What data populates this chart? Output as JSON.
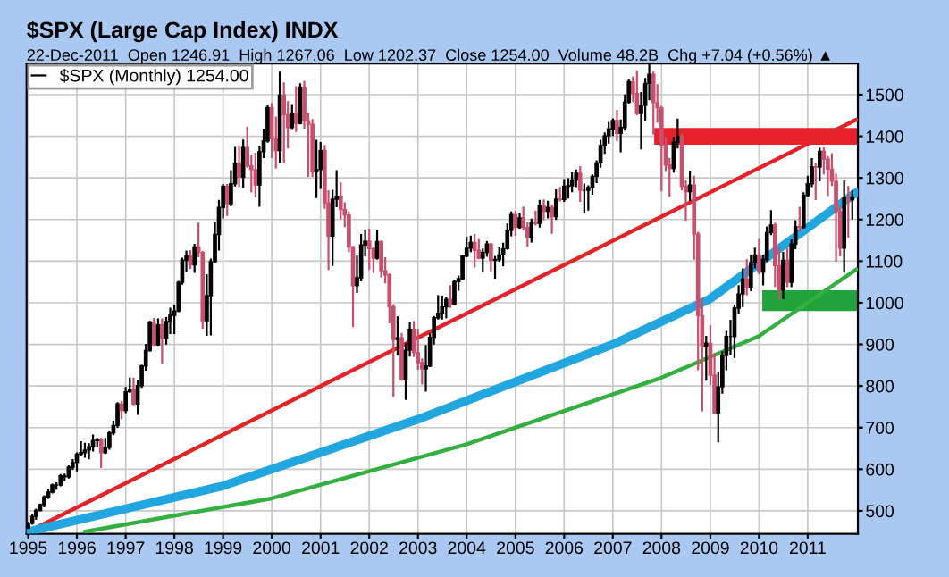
{
  "chart_data": {
    "type": "candlestick",
    "title": "$SPX (Large Cap Index) INDX",
    "subtitle": "22-Dec-2011  Open 1246.91  High 1267.06  Low 1202.37  Close 1254.00  Volume 48.2B  Chg +7.04 (+0.56%) ▲",
    "grid": true,
    "legend": "top left",
    "xlim": [
      "1994-12-20",
      "2012-01-12"
    ],
    "ylim": [
      445,
      1575
    ],
    "yticks": [
      500,
      600,
      700,
      800,
      900,
      1000,
      1100,
      1200,
      1300,
      1400,
      1500
    ],
    "xticks": [
      {
        "value": "1995-01-01",
        "label": "1995"
      },
      {
        "value": "1996-01-01",
        "label": "1996"
      },
      {
        "value": "1997-01-01",
        "label": "1997"
      },
      {
        "value": "1998-01-01",
        "label": "1998"
      },
      {
        "value": "1999-01-01",
        "label": "1999"
      },
      {
        "value": "2000-01-01",
        "label": "2000"
      },
      {
        "value": "2001-01-01",
        "label": "2001"
      },
      {
        "value": "2002-01-01",
        "label": "2002"
      },
      {
        "value": "2003-01-01",
        "label": "2003"
      },
      {
        "value": "2004-01-01",
        "label": "2004"
      },
      {
        "value": "2005-01-01",
        "label": "2005"
      },
      {
        "value": "2006-01-01",
        "label": "2006"
      },
      {
        "value": "2007-01-01",
        "label": "2007"
      },
      {
        "value": "2008-01-01",
        "label": "2008"
      },
      {
        "value": "2009-01-01",
        "label": "2009"
      },
      {
        "value": "2010-01-01",
        "label": "2010"
      },
      {
        "value": "2011-01-01",
        "label": "2011"
      }
    ],
    "bands": [
      {
        "axis": "y",
        "from": 1380,
        "to": 1420,
        "color": "#e8202a"
      },
      {
        "axis": "y",
        "from": 980,
        "to": 1030,
        "color": "#1fa33a"
      }
    ],
    "series": [
      {
        "name": "$SPX (Monthly) 1254.00",
        "x": [
          "1995-01",
          "1995-02",
          "1995-03",
          "1995-04",
          "1995-05",
          "1995-06",
          "1995-07",
          "1995-08",
          "1995-09",
          "1995-10",
          "1995-11",
          "1995-12",
          "1996-01",
          "1996-02",
          "1996-03",
          "1996-04",
          "1996-05",
          "1996-06",
          "1996-07",
          "1996-08",
          "1996-09",
          "1996-10",
          "1996-11",
          "1996-12",
          "1997-01",
          "1997-02",
          "1997-03",
          "1997-04",
          "1997-05",
          "1997-06",
          "1997-07",
          "1997-08",
          "1997-09",
          "1997-10",
          "1997-11",
          "1997-12",
          "1998-01",
          "1998-02",
          "1998-03",
          "1998-04",
          "1998-05",
          "1998-06",
          "1998-07",
          "1998-08",
          "1998-09",
          "1998-10",
          "1998-11",
          "1998-12",
          "1999-01",
          "1999-02",
          "1999-03",
          "1999-04",
          "1999-05",
          "1999-06",
          "1999-07",
          "1999-08",
          "1999-09",
          "1999-10",
          "1999-11",
          "1999-12",
          "2000-01",
          "2000-02",
          "2000-03",
          "2000-04",
          "2000-05",
          "2000-06",
          "2000-07",
          "2000-08",
          "2000-09",
          "2000-10",
          "2000-11",
          "2000-12",
          "2001-01",
          "2001-02",
          "2001-03",
          "2001-04",
          "2001-05",
          "2001-06",
          "2001-07",
          "2001-08",
          "2001-09",
          "2001-10",
          "2001-11",
          "2001-12",
          "2002-01",
          "2002-02",
          "2002-03",
          "2002-04",
          "2002-05",
          "2002-06",
          "2002-07",
          "2002-08",
          "2002-09",
          "2002-10",
          "2002-11",
          "2002-12",
          "2003-01",
          "2003-02",
          "2003-03",
          "2003-04",
          "2003-05",
          "2003-06",
          "2003-07",
          "2003-08",
          "2003-09",
          "2003-10",
          "2003-11",
          "2003-12",
          "2004-01",
          "2004-02",
          "2004-03",
          "2004-04",
          "2004-05",
          "2004-06",
          "2004-07",
          "2004-08",
          "2004-09",
          "2004-10",
          "2004-11",
          "2004-12",
          "2005-01",
          "2005-02",
          "2005-03",
          "2005-04",
          "2005-05",
          "2005-06",
          "2005-07",
          "2005-08",
          "2005-09",
          "2005-10",
          "2005-11",
          "2005-12",
          "2006-01",
          "2006-02",
          "2006-03",
          "2006-04",
          "2006-05",
          "2006-06",
          "2006-07",
          "2006-08",
          "2006-09",
          "2006-10",
          "2006-11",
          "2006-12",
          "2007-01",
          "2007-02",
          "2007-03",
          "2007-04",
          "2007-05",
          "2007-06",
          "2007-07",
          "2007-08",
          "2007-09",
          "2007-10",
          "2007-11",
          "2007-12",
          "2008-01",
          "2008-02",
          "2008-03",
          "2008-04",
          "2008-05",
          "2008-06",
          "2008-07",
          "2008-08",
          "2008-09",
          "2008-10",
          "2008-11",
          "2008-12",
          "2009-01",
          "2009-02",
          "2009-03",
          "2009-04",
          "2009-05",
          "2009-06",
          "2009-07",
          "2009-08",
          "2009-09",
          "2009-10",
          "2009-11",
          "2009-12",
          "2010-01",
          "2010-02",
          "2010-03",
          "2010-04",
          "2010-05",
          "2010-06",
          "2010-07",
          "2010-08",
          "2010-09",
          "2010-10",
          "2010-11",
          "2010-12",
          "2011-01",
          "2011-02",
          "2011-03",
          "2011-04",
          "2011-05",
          "2011-06",
          "2011-07",
          "2011-08",
          "2011-09",
          "2011-10",
          "2011-11",
          "2011-12"
        ],
        "ohlc": [
          [
            459,
            471,
            459,
            470
          ],
          [
            470,
            489,
            469,
            487
          ],
          [
            487,
            503,
            481,
            501
          ],
          [
            501,
            515,
            501,
            515
          ],
          [
            515,
            535,
            511,
            533
          ],
          [
            533,
            551,
            531,
            545
          ],
          [
            545,
            563,
            544,
            562
          ],
          [
            562,
            566,
            553,
            562
          ],
          [
            562,
            586,
            561,
            584
          ],
          [
            584,
            587,
            573,
            582
          ],
          [
            582,
            607,
            580,
            605
          ],
          [
            605,
            622,
            601,
            616
          ],
          [
            616,
            638,
            597,
            636
          ],
          [
            636,
            665,
            635,
            640
          ],
          [
            640,
            661,
            630,
            646
          ],
          [
            646,
            660,
            626,
            654
          ],
          [
            654,
            681,
            645,
            669
          ],
          [
            669,
            673,
            657,
            671
          ],
          [
            671,
            673,
            605,
            640
          ],
          [
            640,
            673,
            639,
            652
          ],
          [
            652,
            690,
            649,
            687
          ],
          [
            687,
            714,
            684,
            705
          ],
          [
            705,
            759,
            702,
            757
          ],
          [
            757,
            762,
            723,
            741
          ],
          [
            741,
            795,
            737,
            786
          ],
          [
            786,
            818,
            786,
            791
          ],
          [
            791,
            818,
            756,
            757
          ],
          [
            757,
            812,
            733,
            801
          ],
          [
            801,
            849,
            798,
            848
          ],
          [
            848,
            899,
            839,
            885
          ],
          [
            885,
            954,
            885,
            954
          ],
          [
            954,
            961,
            899,
            899
          ],
          [
            899,
            960,
            899,
            947
          ],
          [
            947,
            960,
            855,
            915
          ],
          [
            915,
            963,
            902,
            955
          ],
          [
            955,
            986,
            927,
            970
          ],
          [
            970,
            993,
            927,
            980
          ],
          [
            980,
            1050,
            980,
            1049
          ],
          [
            1049,
            1106,
            1046,
            1102
          ],
          [
            1102,
            1123,
            1076,
            1112
          ],
          [
            1112,
            1124,
            1084,
            1091
          ],
          [
            1091,
            1139,
            1074,
            1134
          ],
          [
            1134,
            1190,
            1112,
            1121
          ],
          [
            1121,
            1122,
            940,
            957
          ],
          [
            957,
            1066,
            923,
            1017
          ],
          [
            1017,
            1104,
            924,
            1099
          ],
          [
            1099,
            1193,
            1099,
            1164
          ],
          [
            1164,
            1245,
            1128,
            1229
          ],
          [
            1229,
            1283,
            1205,
            1280
          ],
          [
            1280,
            1283,
            1211,
            1238
          ],
          [
            1238,
            1316,
            1234,
            1286
          ],
          [
            1286,
            1372,
            1282,
            1335
          ],
          [
            1335,
            1376,
            1281,
            1302
          ],
          [
            1302,
            1390,
            1278,
            1373
          ],
          [
            1373,
            1421,
            1327,
            1329
          ],
          [
            1329,
            1353,
            1268,
            1320
          ],
          [
            1320,
            1358,
            1256,
            1283
          ],
          [
            1283,
            1373,
            1233,
            1363
          ],
          [
            1363,
            1416,
            1350,
            1389
          ],
          [
            1389,
            1473,
            1387,
            1469
          ],
          [
            1469,
            1478,
            1350,
            1394
          ],
          [
            1394,
            1445,
            1325,
            1366
          ],
          [
            1366,
            1553,
            1339,
            1499
          ],
          [
            1499,
            1527,
            1339,
            1452
          ],
          [
            1452,
            1482,
            1373,
            1421
          ],
          [
            1421,
            1475,
            1420,
            1455
          ],
          [
            1455,
            1518,
            1413,
            1431
          ],
          [
            1431,
            1525,
            1431,
            1518
          ],
          [
            1518,
            1531,
            1421,
            1437
          ],
          [
            1437,
            1454,
            1305,
            1429
          ],
          [
            1429,
            1439,
            1305,
            1315
          ],
          [
            1315,
            1389,
            1254,
            1320
          ],
          [
            1320,
            1384,
            1276,
            1366
          ],
          [
            1366,
            1377,
            1228,
            1240
          ],
          [
            1240,
            1268,
            1081,
            1160
          ],
          [
            1160,
            1269,
            1091,
            1249
          ],
          [
            1249,
            1316,
            1232,
            1256
          ],
          [
            1256,
            1287,
            1203,
            1224
          ],
          [
            1224,
            1239,
            1184,
            1211
          ],
          [
            1211,
            1217,
            1124,
            1134
          ],
          [
            1134,
            1134,
            944,
            1041
          ],
          [
            1041,
            1111,
            1026,
            1060
          ],
          [
            1060,
            1163,
            1054,
            1139
          ],
          [
            1139,
            1173,
            1114,
            1148
          ],
          [
            1148,
            1176,
            1081,
            1130
          ],
          [
            1130,
            1131,
            1074,
            1107
          ],
          [
            1107,
            1173,
            1106,
            1147
          ],
          [
            1147,
            1147,
            1063,
            1077
          ],
          [
            1077,
            1107,
            1049,
            1067
          ],
          [
            1067,
            1068,
            953,
            990
          ],
          [
            990,
            994,
            776,
            912
          ],
          [
            912,
            965,
            876,
            916
          ],
          [
            916,
            925,
            815,
            815
          ],
          [
            815,
            900,
            769,
            886
          ],
          [
            886,
            951,
            873,
            936
          ],
          [
            936,
            954,
            872,
            880
          ],
          [
            880,
            935,
            841,
            856
          ],
          [
            856,
            864,
            806,
            841
          ],
          [
            841,
            896,
            789,
            848
          ],
          [
            848,
            924,
            848,
            917
          ],
          [
            917,
            966,
            902,
            964
          ],
          [
            964,
            1016,
            962,
            975
          ],
          [
            975,
            1015,
            962,
            990
          ],
          [
            990,
            1012,
            965,
            1008
          ],
          [
            1008,
            1040,
            990,
            996
          ],
          [
            996,
            1053,
            996,
            1051
          ],
          [
            1051,
            1063,
            1031,
            1058
          ],
          [
            1058,
            1112,
            1058,
            1112
          ],
          [
            1112,
            1156,
            1112,
            1131
          ],
          [
            1131,
            1159,
            1124,
            1145
          ],
          [
            1145,
            1163,
            1087,
            1126
          ],
          [
            1126,
            1151,
            1107,
            1107
          ],
          [
            1107,
            1128,
            1076,
            1121
          ],
          [
            1121,
            1146,
            1113,
            1141
          ],
          [
            1141,
            1141,
            1078,
            1102
          ],
          [
            1102,
            1110,
            1060,
            1104
          ],
          [
            1104,
            1131,
            1101,
            1115
          ],
          [
            1115,
            1142,
            1090,
            1130
          ],
          [
            1130,
            1188,
            1130,
            1174
          ],
          [
            1174,
            1217,
            1162,
            1212
          ],
          [
            1212,
            1218,
            1163,
            1181
          ],
          [
            1181,
            1213,
            1180,
            1204
          ],
          [
            1204,
            1229,
            1176,
            1181
          ],
          [
            1181,
            1192,
            1137,
            1157
          ],
          [
            1157,
            1200,
            1147,
            1192
          ],
          [
            1192,
            1219,
            1188,
            1191
          ],
          [
            1191,
            1245,
            1183,
            1234
          ],
          [
            1234,
            1246,
            1201,
            1220
          ],
          [
            1220,
            1243,
            1205,
            1229
          ],
          [
            1229,
            1233,
            1168,
            1207
          ],
          [
            1207,
            1270,
            1202,
            1249
          ],
          [
            1249,
            1276,
            1246,
            1248
          ],
          [
            1248,
            1295,
            1245,
            1280
          ],
          [
            1280,
            1297,
            1253,
            1281
          ],
          [
            1281,
            1311,
            1268,
            1295
          ],
          [
            1295,
            1318,
            1280,
            1311
          ],
          [
            1311,
            1326,
            1245,
            1270
          ],
          [
            1270,
            1284,
            1219,
            1270
          ],
          [
            1270,
            1280,
            1224,
            1277
          ],
          [
            1277,
            1306,
            1262,
            1304
          ],
          [
            1304,
            1340,
            1290,
            1336
          ],
          [
            1336,
            1389,
            1327,
            1378
          ],
          [
            1378,
            1407,
            1360,
            1401
          ],
          [
            1401,
            1432,
            1385,
            1418
          ],
          [
            1418,
            1441,
            1403,
            1438
          ],
          [
            1438,
            1461,
            1390,
            1407
          ],
          [
            1407,
            1438,
            1364,
            1421
          ],
          [
            1421,
            1498,
            1416,
            1482
          ],
          [
            1482,
            1535,
            1481,
            1531
          ],
          [
            1531,
            1541,
            1484,
            1503
          ],
          [
            1503,
            1556,
            1453,
            1455
          ],
          [
            1455,
            1504,
            1371,
            1474
          ],
          [
            1474,
            1538,
            1439,
            1527
          ],
          [
            1527,
            1572,
            1489,
            1549
          ],
          [
            1549,
            1553,
            1407,
            1481
          ],
          [
            1481,
            1523,
            1435,
            1468
          ],
          [
            1468,
            1471,
            1270,
            1379
          ],
          [
            1379,
            1396,
            1317,
            1331
          ],
          [
            1331,
            1345,
            1257,
            1323
          ],
          [
            1323,
            1397,
            1315,
            1386
          ],
          [
            1386,
            1440,
            1373,
            1400
          ],
          [
            1400,
            1404,
            1272,
            1280
          ],
          [
            1280,
            1292,
            1200,
            1267
          ],
          [
            1267,
            1314,
            1247,
            1283
          ],
          [
            1283,
            1303,
            1106,
            1165
          ],
          [
            1165,
            1168,
            840,
            969
          ],
          [
            969,
            1008,
            741,
            896
          ],
          [
            896,
            918,
            815,
            903
          ],
          [
            903,
            944,
            805,
            826
          ],
          [
            826,
            876,
            735,
            735
          ],
          [
            735,
            832,
            667,
            798
          ],
          [
            798,
            881,
            784,
            873
          ],
          [
            873,
            930,
            840,
            919
          ],
          [
            919,
            957,
            877,
            919
          ],
          [
            919,
            993,
            870,
            987
          ],
          [
            987,
            1040,
            975,
            1021
          ],
          [
            1021,
            1080,
            992,
            1057
          ],
          [
            1057,
            1102,
            1020,
            1036
          ],
          [
            1036,
            1113,
            1030,
            1096
          ],
          [
            1096,
            1130,
            1085,
            1115
          ],
          [
            1115,
            1151,
            1071,
            1074
          ],
          [
            1074,
            1113,
            1044,
            1104
          ],
          [
            1104,
            1181,
            1101,
            1169
          ],
          [
            1169,
            1220,
            1165,
            1187
          ],
          [
            1187,
            1190,
            1040,
            1089
          ],
          [
            1089,
            1131,
            1010,
            1031
          ],
          [
            1031,
            1120,
            1011,
            1102
          ],
          [
            1102,
            1130,
            1040,
            1049
          ],
          [
            1049,
            1150,
            1040,
            1141
          ],
          [
            1141,
            1196,
            1131,
            1183
          ],
          [
            1183,
            1228,
            1173,
            1181
          ],
          [
            1181,
            1263,
            1181,
            1258
          ],
          [
            1258,
            1303,
            1257,
            1286
          ],
          [
            1286,
            1345,
            1280,
            1327
          ],
          [
            1327,
            1333,
            1249,
            1326
          ],
          [
            1326,
            1370,
            1294,
            1364
          ],
          [
            1364,
            1371,
            1311,
            1345
          ],
          [
            1345,
            1350,
            1259,
            1321
          ],
          [
            1321,
            1357,
            1283,
            1292
          ],
          [
            1292,
            1308,
            1101,
            1219
          ],
          [
            1219,
            1230,
            1114,
            1131
          ],
          [
            1131,
            1292,
            1075,
            1253
          ],
          [
            1253,
            1278,
            1159,
            1247
          ],
          [
            1246.91,
            1267.06,
            1202.37,
            1254.0
          ]
        ],
        "colors": [
          "#000000",
          "#000000",
          "#000000",
          "#000000",
          "#000000",
          "#000000",
          "#000000",
          "#000000",
          "#000000",
          "#000000",
          "#000000",
          "#000000",
          "#000000",
          "#000000",
          "#000000",
          "#000000",
          "#000000",
          "#000000",
          "#c8506e",
          "#000000",
          "#000000",
          "#000000",
          "#000000",
          "#c8506e",
          "#000000",
          "#000000",
          "#c8506e",
          "#000000",
          "#000000",
          "#000000",
          "#000000",
          "#c8506e",
          "#000000",
          "#c8506e",
          "#000000",
          "#000000",
          "#000000",
          "#000000",
          "#000000",
          "#000000",
          "#c8506e",
          "#000000",
          "#c8506e",
          "#c8506e",
          "#000000",
          "#000000",
          "#000000",
          "#000000",
          "#000000",
          "#c8506e",
          "#000000",
          "#000000",
          "#c8506e",
          "#000000",
          "#c8506e",
          "#c8506e",
          "#c8506e",
          "#000000",
          "#000000",
          "#000000",
          "#c8506e",
          "#c8506e",
          "#000000",
          "#c8506e",
          "#c8506e",
          "#000000",
          "#c8506e",
          "#000000",
          "#c8506e",
          "#c8506e",
          "#c8506e",
          "#000000",
          "#000000",
          "#c8506e",
          "#c8506e",
          "#000000",
          "#000000",
          "#c8506e",
          "#c8506e",
          "#c8506e",
          "#c8506e",
          "#000000",
          "#000000",
          "#000000",
          "#c8506e",
          "#c8506e",
          "#000000",
          "#c8506e",
          "#c8506e",
          "#c8506e",
          "#c8506e",
          "#000000",
          "#c8506e",
          "#000000",
          "#000000",
          "#c8506e",
          "#c8506e",
          "#c8506e",
          "#000000",
          "#000000",
          "#000000",
          "#000000",
          "#000000",
          "#000000",
          "#c8506e",
          "#000000",
          "#000000",
          "#000000",
          "#000000",
          "#000000",
          "#c8506e",
          "#c8506e",
          "#000000",
          "#000000",
          "#c8506e",
          "#000000",
          "#000000",
          "#000000",
          "#000000",
          "#000000",
          "#c8506e",
          "#000000",
          "#c8506e",
          "#c8506e",
          "#000000",
          "#c8506e",
          "#000000",
          "#c8506e",
          "#000000",
          "#c8506e",
          "#000000",
          "#c8506e",
          "#000000",
          "#000000",
          "#000000",
          "#000000",
          "#c8506e",
          "#000000",
          "#000000",
          "#000000",
          "#000000",
          "#000000",
          "#000000",
          "#000000",
          "#000000",
          "#c8506e",
          "#000000",
          "#000000",
          "#000000",
          "#c8506e",
          "#c8506e",
          "#000000",
          "#000000",
          "#000000",
          "#c8506e",
          "#c8506e",
          "#c8506e",
          "#c8506e",
          "#c8506e",
          "#000000",
          "#000000",
          "#c8506e",
          "#c8506e",
          "#000000",
          "#c8506e",
          "#c8506e",
          "#c8506e",
          "#000000",
          "#c8506e",
          "#c8506e",
          "#000000",
          "#000000",
          "#000000",
          "#000000",
          "#000000",
          "#000000",
          "#000000",
          "#c8506e",
          "#000000",
          "#000000",
          "#c8506e",
          "#000000",
          "#000000",
          "#000000",
          "#c8506e",
          "#c8506e",
          "#000000",
          "#c8506e",
          "#000000",
          "#000000",
          "#c8506e",
          "#000000",
          "#000000",
          "#000000",
          "#c8506e",
          "#000000",
          "#c8506e",
          "#c8506e",
          "#c8506e",
          "#c8506e",
          "#c8506e",
          "#000000",
          "#c8506e",
          "#000000"
        ]
      },
      {
        "type": "line",
        "color": "#e0242c",
        "x": [
          "1995-01-01",
          "2011-12-31"
        ],
        "values": [
          450,
          1440
        ]
      },
      {
        "type": "line",
        "color": "#22a6e0",
        "x": [
          "1995-01-01",
          "1999-01-01",
          "2003-01-01",
          "2007-01-01",
          "2009-01-01",
          "2011-12-31"
        ],
        "values": [
          450,
          560,
          720,
          900,
          1010,
          1265
        ]
      },
      {
        "type": "line",
        "color": "#33b040",
        "x": [
          "1996-03-01",
          "2000-01-01",
          "2004-01-01",
          "2008-01-01",
          "2010-01-01",
          "2011-12-31"
        ],
        "values": [
          450,
          530,
          660,
          820,
          920,
          1080
        ]
      }
    ]
  }
}
